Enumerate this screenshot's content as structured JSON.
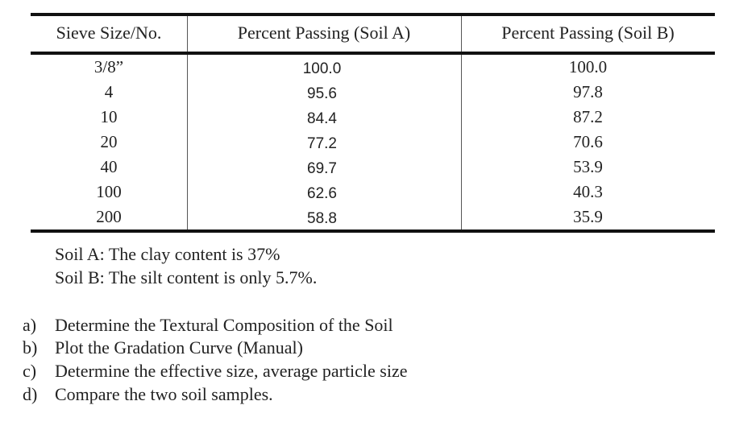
{
  "table": {
    "headers": [
      "Sieve Size/No.",
      "Percent Passing (Soil A)",
      "Percent Passing (Soil B)"
    ],
    "rows": [
      [
        "3/8”",
        "100.0",
        "100.0"
      ],
      [
        "4",
        "95.6",
        "97.8"
      ],
      [
        "10",
        "84.4",
        "87.2"
      ],
      [
        "20",
        "77.2",
        "70.6"
      ],
      [
        "40",
        "69.7",
        "53.9"
      ],
      [
        "100",
        "62.6",
        "40.3"
      ],
      [
        "200",
        "58.8",
        "35.9"
      ]
    ]
  },
  "notes": [
    "Soil A: The clay content is 37%",
    "Soil B:  The silt content is only 5.7%."
  ],
  "questions": [
    {
      "mark": "a)",
      "text": "Determine the Textural Composition of the Soil"
    },
    {
      "mark": "b)",
      "text": "Plot the Gradation Curve (Manual)"
    },
    {
      "mark": "c)",
      "text": "Determine the effective size, average particle size"
    },
    {
      "mark": "d)",
      "text": "Compare the two soil samples."
    }
  ]
}
